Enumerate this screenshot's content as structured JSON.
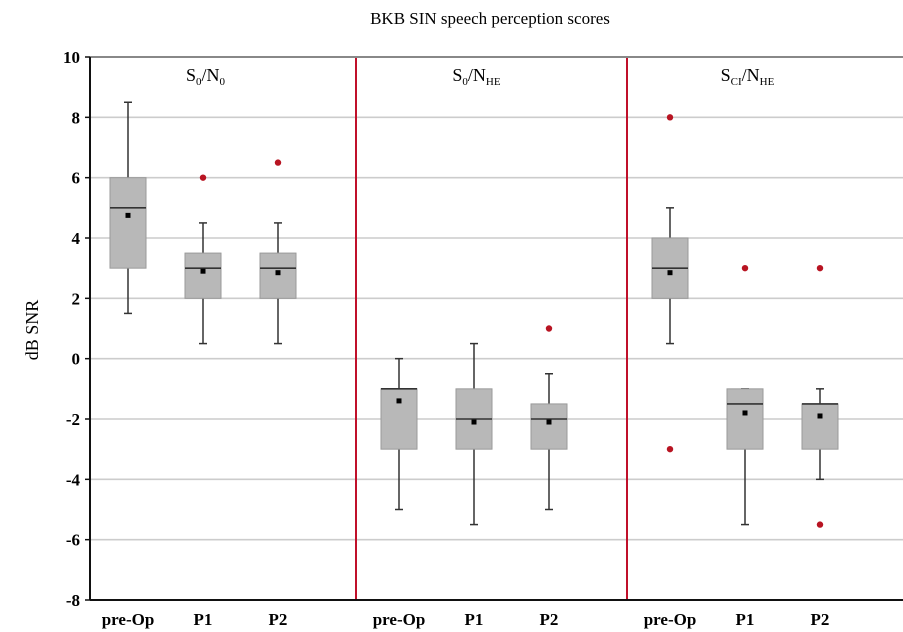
{
  "chart_data": {
    "type": "box",
    "title": "BKB SIN speech perception scores",
    "ylabel": "dB SNR",
    "ylim": [
      -8,
      10
    ],
    "yticks": [
      -8,
      -6,
      -4,
      -2,
      0,
      2,
      4,
      6,
      8,
      10
    ],
    "ytick_labels": [
      "-8",
      "-6",
      "-4",
      "-2",
      "0",
      "2",
      "4",
      "6",
      "8",
      "10"
    ],
    "grid": true,
    "colors": {
      "box_fill": "#b8b8b8",
      "box_stroke": "#9a9a9a",
      "grid": "#cccccc",
      "divider": "#c0102a",
      "outlier": "#b81422",
      "mean": "#000000",
      "whisker": "#333333"
    },
    "panels": [
      {
        "label_main": "S",
        "label_sub1": "0",
        "label_slash": "/N",
        "label_sub2": "0",
        "categories": [
          "pre-Op",
          "P1",
          "P2"
        ],
        "boxes": [
          {
            "whisker_low": 1.5,
            "q1": 3,
            "median": 5,
            "q3": 6,
            "whisker_high": 8.5,
            "mean": 4.75,
            "outliers": []
          },
          {
            "whisker_low": 0.5,
            "q1": 2,
            "median": 3,
            "q3": 3.5,
            "whisker_high": 4.5,
            "mean": 2.9,
            "outliers": [
              6
            ]
          },
          {
            "whisker_low": 0.5,
            "q1": 2,
            "median": 3,
            "q3": 3.5,
            "whisker_high": 4.5,
            "mean": 2.85,
            "outliers": [
              6.5
            ]
          }
        ]
      },
      {
        "label_main": "S",
        "label_sub1": "0",
        "label_slash": "/N",
        "label_sub2": "HE",
        "categories": [
          "pre-Op",
          "P1",
          "P2"
        ],
        "boxes": [
          {
            "whisker_low": -5,
            "q1": -3,
            "median": -1,
            "q3": -1,
            "whisker_high": 0,
            "mean": -1.4,
            "outliers": []
          },
          {
            "whisker_low": -5.5,
            "q1": -3,
            "median": -2,
            "q3": -1,
            "whisker_high": 0.5,
            "mean": -2.1,
            "outliers": []
          },
          {
            "whisker_low": -5,
            "q1": -3,
            "median": -2,
            "q3": -1.5,
            "whisker_high": -0.5,
            "mean": -2.1,
            "outliers": [
              1
            ]
          }
        ]
      },
      {
        "label_main": "S",
        "label_sub1": "CI",
        "label_slash": "/N",
        "label_sub2": "HE",
        "categories": [
          "pre-Op",
          "P1",
          "P2"
        ],
        "boxes": [
          {
            "whisker_low": 0.5,
            "q1": 2,
            "median": 3,
            "q3": 4,
            "whisker_high": 5,
            "mean": 2.85,
            "outliers": [
              8,
              -3
            ]
          },
          {
            "whisker_low": -5.5,
            "q1": -3,
            "median": -1.5,
            "q3": -1,
            "whisker_high": -1,
            "mean": -1.8,
            "outliers": [
              3
            ]
          },
          {
            "whisker_low": -4,
            "q1": -3,
            "median": -1.5,
            "q3": -1.5,
            "whisker_high": -1,
            "mean": -1.9,
            "outliers": [
              3,
              -5.5
            ]
          }
        ]
      }
    ]
  }
}
